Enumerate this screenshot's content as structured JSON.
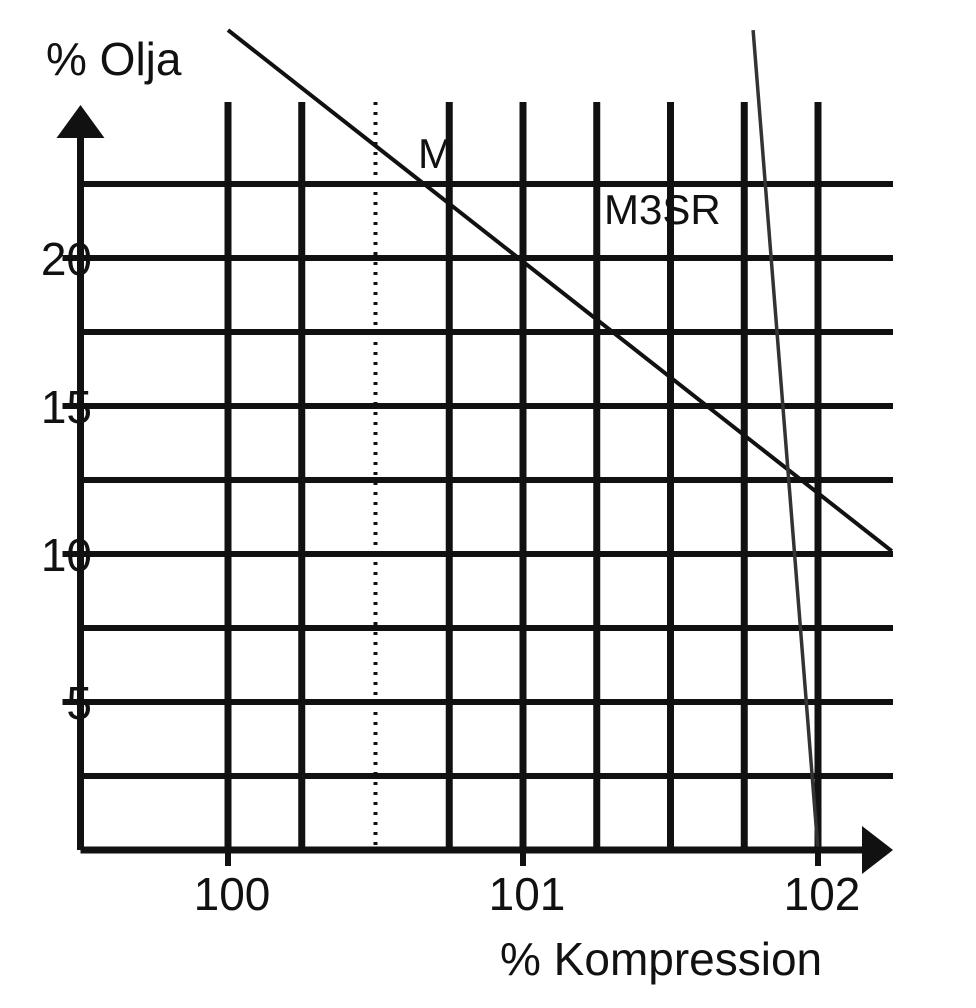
{
  "chart_data": {
    "type": "line",
    "ylabel": "% Olja",
    "xlabel": "% Kompression",
    "x_ticks": [
      {
        "value": 100,
        "label": "100"
      },
      {
        "value": 101,
        "label": "101"
      },
      {
        "value": 102,
        "label": "102"
      }
    ],
    "y_ticks": [
      {
        "value": 5,
        "label": "5"
      },
      {
        "value": 10,
        "label": "10"
      },
      {
        "value": 15,
        "label": "15"
      },
      {
        "value": 20,
        "label": "20"
      }
    ],
    "xlim": [
      99.5,
      102.25
    ],
    "ylim": [
      0,
      25.5
    ],
    "grid": true,
    "grid_x_step": 0.25,
    "grid_y_step": 2.5,
    "dotted_reference_x": 100.5,
    "series": [
      {
        "name": "M",
        "x": [
          100,
          102.25
        ],
        "y": [
          27.7,
          10.1
        ],
        "color": "#111111"
      },
      {
        "name": "M3SR",
        "x": [
          101.78,
          102.0
        ],
        "y": [
          27.7,
          0
        ],
        "color": "#333333"
      }
    ]
  }
}
